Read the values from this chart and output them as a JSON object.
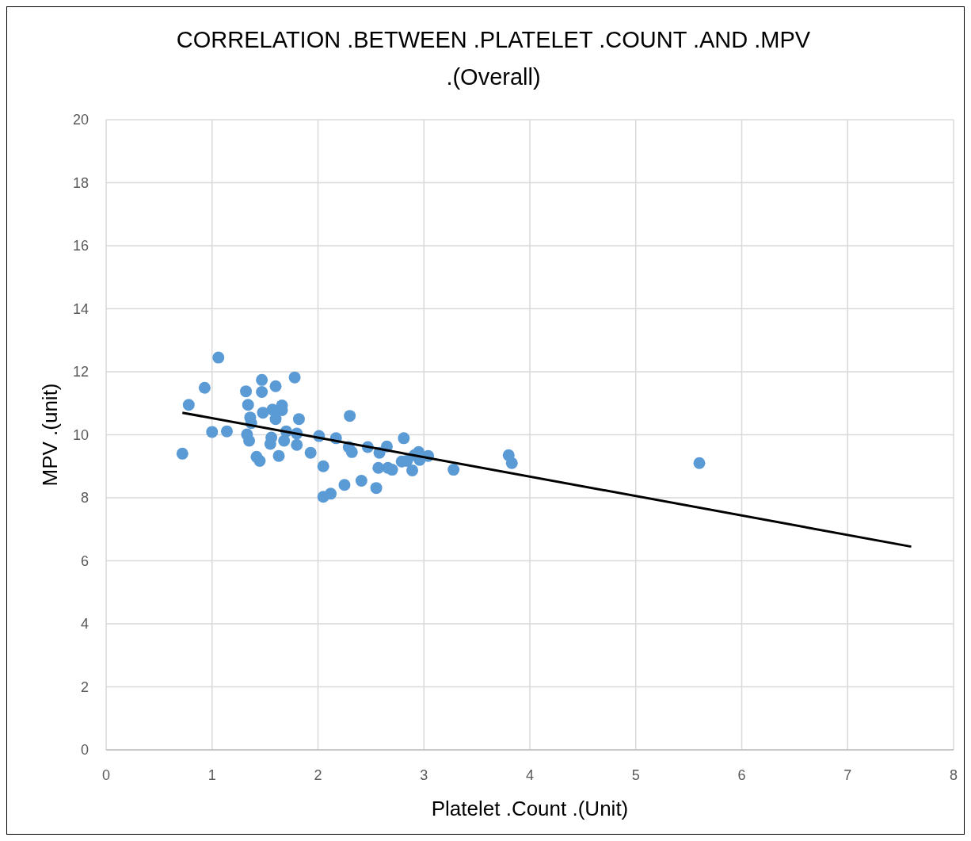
{
  "chart_data": {
    "type": "scatter",
    "title": "CORRELATION .BETWEEN .PLATELET .COUNT .AND .MPV .(Overall)",
    "xlabel": "Platelet .Count .(Unit)",
    "ylabel": "MPV .(unit)",
    "xlim": [
      0,
      8
    ],
    "xticks": [
      0,
      1,
      2,
      3,
      4,
      5,
      6,
      7,
      8
    ],
    "ylim": [
      0,
      20
    ],
    "yticks": [
      0,
      2,
      4,
      6,
      8,
      10,
      12,
      14,
      16,
      18,
      20
    ],
    "grid": true,
    "series": [
      {
        "type": "scatter",
        "color": "#5b9bd5",
        "marker": "circle",
        "x": [
          0.72,
          0.78,
          0.93,
          1.0,
          1.06,
          1.14,
          1.32,
          1.34,
          1.33,
          1.35,
          1.36,
          1.37,
          1.42,
          1.45,
          1.47,
          1.47,
          1.48,
          1.55,
          1.56,
          1.57,
          1.6,
          1.6,
          1.63,
          1.66,
          1.66,
          1.68,
          1.7,
          1.78,
          1.8,
          1.8,
          1.82,
          1.93,
          2.01,
          2.05,
          2.05,
          2.12,
          2.17,
          2.25,
          2.29,
          2.3,
          2.32,
          2.41,
          2.47,
          2.55,
          2.57,
          2.58,
          2.65,
          2.66,
          2.7,
          2.79,
          2.81,
          2.84,
          2.89,
          2.91,
          2.95,
          2.96,
          3.04,
          3.28,
          3.8,
          3.83,
          5.6
        ],
        "values": [
          9.4,
          10.95,
          11.49,
          10.09,
          12.45,
          10.11,
          11.38,
          10.95,
          10.01,
          9.81,
          10.55,
          10.37,
          9.3,
          9.17,
          11.74,
          11.36,
          10.7,
          9.71,
          9.91,
          10.8,
          11.54,
          10.5,
          9.33,
          10.93,
          10.78,
          9.81,
          10.11,
          11.82,
          9.68,
          10.04,
          10.5,
          9.43,
          9.96,
          9.0,
          8.03,
          8.13,
          9.89,
          8.41,
          9.61,
          10.6,
          9.45,
          8.54,
          9.61,
          8.31,
          8.95,
          9.43,
          9.63,
          8.95,
          8.89,
          9.15,
          9.89,
          9.17,
          8.87,
          9.35,
          9.45,
          9.2,
          9.33,
          8.89,
          9.35,
          9.1,
          9.1
        ]
      },
      {
        "type": "line",
        "color": "#000000",
        "marker": "none",
        "x": [
          0.72,
          7.6
        ],
        "values": [
          10.7,
          6.45
        ]
      }
    ]
  }
}
